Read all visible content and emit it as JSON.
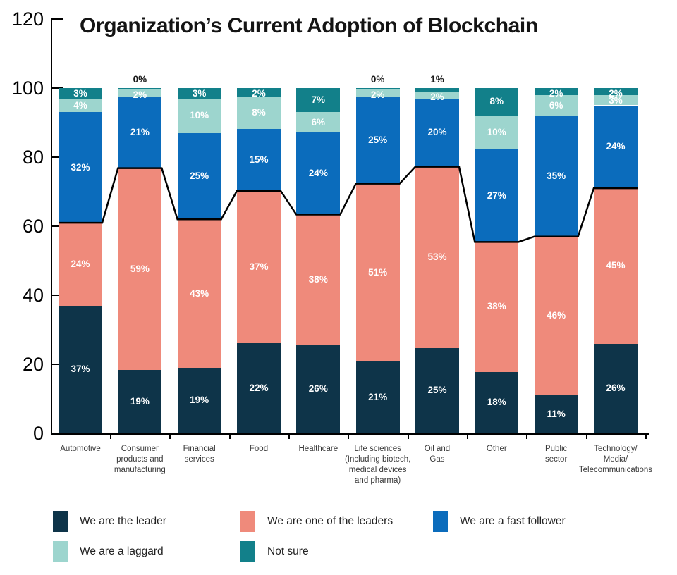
{
  "chart_data": {
    "type": "bar",
    "stacked": true,
    "normalized": true,
    "title": "Organization’s Current Adoption of Blockchain",
    "xlabel": "",
    "ylabel": "",
    "ylim": [
      0,
      120
    ],
    "y_ticks": [
      0,
      20,
      40,
      60,
      80,
      100,
      120
    ],
    "grid": false,
    "legend_position": "bottom",
    "categories": [
      "Automotive",
      "Consumer\nproducts and\nmanufacturing",
      "Financial\nservices",
      "Food",
      "Healthcare",
      "Life sciences\n(Including biotech,\nmedical devices\nand pharma)",
      "Oil and\nGas",
      "Other",
      "Public\nsector",
      "Technology/\nMedia/\nTelecommunications"
    ],
    "series": [
      {
        "name": "We are the leader",
        "color": "#0E3449",
        "values": [
          37,
          19,
          19,
          22,
          26,
          21,
          25,
          18,
          11,
          26
        ]
      },
      {
        "name": "We are one of the leaders",
        "color": "#EF8A7B",
        "values": [
          24,
          59,
          43,
          37,
          38,
          51,
          53,
          38,
          46,
          45
        ]
      },
      {
        "name": "We are a fast follower",
        "color": "#0B6CBC",
        "values": [
          32,
          21,
          25,
          15,
          24,
          25,
          20,
          27,
          35,
          24
        ]
      },
      {
        "name": "We are a laggard",
        "color": "#9DD5CE",
        "values": [
          4,
          2,
          10,
          8,
          6,
          2,
          2,
          10,
          6,
          3
        ]
      },
      {
        "name": "Not sure",
        "color": "#12808A",
        "values": [
          3,
          0,
          3,
          2,
          7,
          0,
          1,
          8,
          2,
          2
        ]
      }
    ],
    "line_overlay": {
      "description": "black step line tracing cumulative top of 'We are the leader' + 'We are one of the leaders'",
      "color": "#000000"
    }
  },
  "legend": {
    "items": [
      {
        "label": "We are the leader",
        "color": "#0E3449"
      },
      {
        "label": "We are one of the leaders",
        "color": "#EF8A7B"
      },
      {
        "label": "We are a fast follower",
        "color": "#0B6CBC"
      },
      {
        "label": "We are a laggard",
        "color": "#9DD5CE"
      },
      {
        "label": "Not sure",
        "color": "#12808A"
      }
    ]
  }
}
